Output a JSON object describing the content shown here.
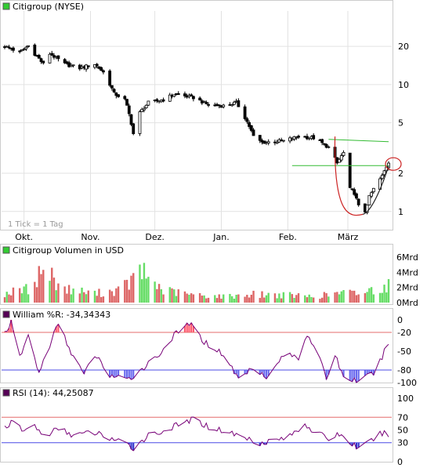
{
  "colors": {
    "up": "#44cc44",
    "down": "#dd5555",
    "volume_up": "#66dd66",
    "volume_down": "#dd6666",
    "willr_line": "#770077",
    "willr_fill_high": "#ff5a6e",
    "willr_fill_low": "#6a6aee",
    "rsi_line": "#770077",
    "rsi_fill_low": "#3636cc",
    "ref_high": "#e66b6b",
    "ref_low": "#4a4ae6",
    "trendline": "#33bb33",
    "cup_curve": "#cc2222",
    "cup_curve_right": "#222222",
    "highlight_circle": "#cc2222"
  },
  "chart_data": [
    {
      "type": "candlestick",
      "title": "Citigroup (NYSE)",
      "legend_swatch": "#33cc33",
      "note": "1 Tick = 1 Tag",
      "y_scale": "log",
      "ylim": [
        0.75,
        38
      ],
      "y_ticks": [
        {
          "value": 20,
          "label": "20"
        },
        {
          "value": 10,
          "label": "10"
        },
        {
          "value": 5,
          "label": "5"
        },
        {
          "value": 2,
          "label": "2"
        },
        {
          "value": 1,
          "label": "1"
        }
      ],
      "x_range": [
        "2008-09-22",
        "2009-03-20"
      ],
      "x_ticks": [
        {
          "date": "2008-10-01",
          "label": "Okt."
        },
        {
          "date": "2008-11-01",
          "label": "Nov."
        },
        {
          "date": "2008-12-01",
          "label": "Dez."
        },
        {
          "date": "2009-01-01",
          "label": "Jan."
        },
        {
          "date": "2009-02-01",
          "label": "Feb."
        },
        {
          "date": "2009-03-01",
          "label": "März"
        }
      ],
      "anchors": [
        [
          "2008-09-22",
          20.0
        ],
        [
          "2008-09-29",
          18.0
        ],
        [
          "2008-10-03",
          20.2
        ],
        [
          "2008-10-06",
          17.5
        ],
        [
          "2008-10-10",
          14.5
        ],
        [
          "2008-10-13",
          17.5
        ],
        [
          "2008-10-20",
          14.5
        ],
        [
          "2008-10-27",
          13.5
        ],
        [
          "2008-11-03",
          14.5
        ],
        [
          "2008-11-07",
          12.5
        ],
        [
          "2008-11-12",
          8.5
        ],
        [
          "2008-11-17",
          7.6
        ],
        [
          "2008-11-21",
          4.1
        ],
        [
          "2008-11-24",
          6.0
        ],
        [
          "2008-11-28",
          7.2
        ],
        [
          "2008-12-05",
          7.6
        ],
        [
          "2008-12-10",
          8.4
        ],
        [
          "2008-12-19",
          7.9
        ],
        [
          "2008-12-26",
          6.9
        ],
        [
          "2009-01-02",
          6.8
        ],
        [
          "2009-01-08",
          7.2
        ],
        [
          "2009-01-13",
          5.1
        ],
        [
          "2009-01-16",
          3.9
        ],
        [
          "2009-01-20",
          3.5
        ],
        [
          "2009-01-30",
          3.6
        ],
        [
          "2009-02-06",
          3.9
        ],
        [
          "2009-02-13",
          3.8
        ],
        [
          "2009-02-20",
          3.2
        ],
        [
          "2009-02-24",
          2.4
        ],
        [
          "2009-02-27",
          2.9
        ],
        [
          "2009-03-02",
          1.5
        ],
        [
          "2009-03-04",
          1.4
        ],
        [
          "2009-03-06",
          1.1
        ],
        [
          "2009-03-09",
          1.0
        ],
        [
          "2009-03-11",
          1.3
        ],
        [
          "2009-03-13",
          1.5
        ],
        [
          "2009-03-17",
          1.9
        ],
        [
          "2009-03-20",
          2.45
        ]
      ],
      "volume_anchors": [
        [
          "2008-09-22",
          1.2
        ],
        [
          "2008-10-03",
          1.8
        ],
        [
          "2008-10-10",
          4.5
        ],
        [
          "2008-10-20",
          1.8
        ],
        [
          "2008-11-03",
          1.2
        ],
        [
          "2008-11-14",
          1.6
        ],
        [
          "2008-11-21",
          3.0
        ],
        [
          "2008-11-24",
          4.2
        ],
        [
          "2008-12-05",
          1.6
        ],
        [
          "2008-12-19",
          1.0
        ],
        [
          "2009-01-02",
          0.8
        ],
        [
          "2009-01-16",
          1.1
        ],
        [
          "2009-01-30",
          1.0
        ],
        [
          "2009-02-13",
          0.8
        ],
        [
          "2009-02-27",
          1.3
        ],
        [
          "2009-03-06",
          1.2
        ],
        [
          "2009-03-20",
          2.3
        ]
      ],
      "trendlines": [
        {
          "from": [
            "2009-02-20",
            3.7
          ],
          "to": [
            "2009-03-20",
            3.55
          ]
        },
        {
          "from": [
            "2009-02-03",
            2.3
          ],
          "to": [
            "2009-03-20",
            2.3
          ]
        }
      ]
    },
    {
      "type": "bar",
      "title": "Citigroup Volumen in USD",
      "legend_swatch": "#33cc33",
      "ylim": [
        0,
        6.2
      ],
      "y_ticks": [
        {
          "value": 6,
          "label": "6Mrd"
        },
        {
          "value": 4,
          "label": "4Mrd"
        },
        {
          "value": 2,
          "label": "2Mrd"
        },
        {
          "value": 0,
          "label": "0Mrd"
        }
      ]
    },
    {
      "type": "line",
      "title": "William %R: -34,34343",
      "legend_swatch": "#550055",
      "ylim": [
        -100,
        0
      ],
      "y_ticks": [
        {
          "value": 0,
          "label": "0"
        },
        {
          "value": -20,
          "label": "-20"
        },
        {
          "value": -50,
          "label": "-50"
        },
        {
          "value": -80,
          "label": "-80"
        },
        {
          "value": -100,
          "label": "-100"
        }
      ],
      "reference_lines": [
        -20,
        -80
      ],
      "anchors": [
        [
          "2008-09-22",
          -20
        ],
        [
          "2008-09-25",
          -5
        ],
        [
          "2008-09-29",
          -60
        ],
        [
          "2008-10-03",
          -25
        ],
        [
          "2008-10-08",
          -85
        ],
        [
          "2008-10-13",
          -40
        ],
        [
          "2008-10-17",
          -5
        ],
        [
          "2008-10-22",
          -45
        ],
        [
          "2008-10-29",
          -88
        ],
        [
          "2008-11-03",
          -55
        ],
        [
          "2008-11-10",
          -88
        ],
        [
          "2008-11-18",
          -97
        ],
        [
          "2008-11-25",
          -78
        ],
        [
          "2008-12-03",
          -55
        ],
        [
          "2008-12-10",
          -25
        ],
        [
          "2008-12-17",
          -5
        ],
        [
          "2008-12-24",
          -35
        ],
        [
          "2009-01-02",
          -55
        ],
        [
          "2009-01-09",
          -94
        ],
        [
          "2009-01-16",
          -75
        ],
        [
          "2009-01-23",
          -92
        ],
        [
          "2009-01-30",
          -55
        ],
        [
          "2009-02-06",
          -60
        ],
        [
          "2009-02-10",
          -22
        ],
        [
          "2009-02-14",
          -45
        ],
        [
          "2009-02-19",
          -94
        ],
        [
          "2009-02-23",
          -55
        ],
        [
          "2009-02-27",
          -92
        ],
        [
          "2009-03-06",
          -98
        ],
        [
          "2009-03-13",
          -85
        ],
        [
          "2009-03-17",
          -60
        ],
        [
          "2009-03-20",
          -34
        ]
      ]
    },
    {
      "type": "line",
      "title": "RSI (14): 44,25087",
      "legend_swatch": "#550055",
      "ylim": [
        0,
        100
      ],
      "y_ticks": [
        {
          "value": 100,
          "label": "100"
        },
        {
          "value": 70,
          "label": "70"
        },
        {
          "value": 50,
          "label": "50"
        },
        {
          "value": 30,
          "label": "30"
        },
        {
          "value": 0,
          "label": "0"
        }
      ],
      "reference_lines": [
        70,
        30
      ],
      "anchors": [
        [
          "2008-09-22",
          55
        ],
        [
          "2008-09-26",
          62
        ],
        [
          "2008-10-01",
          48
        ],
        [
          "2008-10-06",
          58
        ],
        [
          "2008-10-10",
          40
        ],
        [
          "2008-10-17",
          52
        ],
        [
          "2008-10-24",
          42
        ],
        [
          "2008-11-03",
          46
        ],
        [
          "2008-11-12",
          35
        ],
        [
          "2008-11-21",
          22
        ],
        [
          "2008-11-28",
          42
        ],
        [
          "2008-12-05",
          48
        ],
        [
          "2008-12-12",
          58
        ],
        [
          "2008-12-19",
          67
        ],
        [
          "2008-12-26",
          55
        ],
        [
          "2009-01-05",
          46
        ],
        [
          "2009-01-12",
          38
        ],
        [
          "2009-01-19",
          30
        ],
        [
          "2009-01-26",
          34
        ],
        [
          "2009-02-02",
          40
        ],
        [
          "2009-02-09",
          60
        ],
        [
          "2009-02-13",
          48
        ],
        [
          "2009-02-20",
          36
        ],
        [
          "2009-02-25",
          44
        ],
        [
          "2009-03-02",
          30
        ],
        [
          "2009-03-06",
          22
        ],
        [
          "2009-03-10",
          28
        ],
        [
          "2009-03-16",
          44
        ],
        [
          "2009-03-20",
          44
        ]
      ]
    }
  ]
}
